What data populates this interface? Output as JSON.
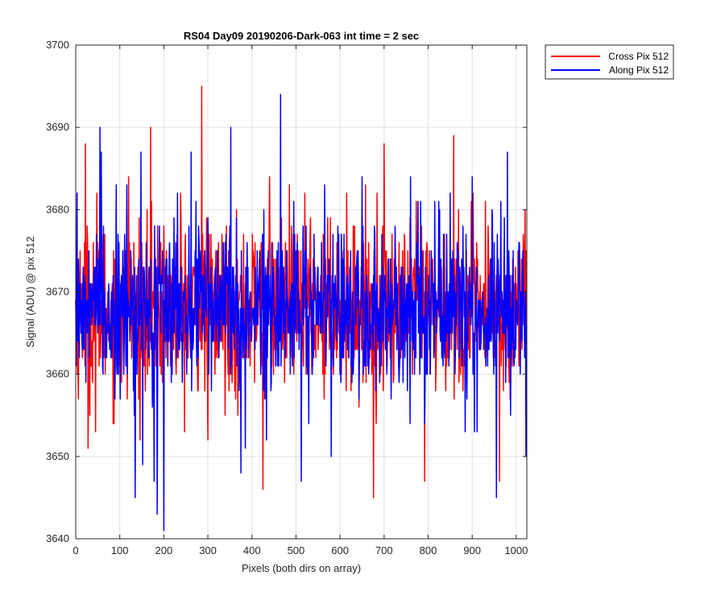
{
  "chart_data": {
    "type": "line",
    "title": "RS04 Day09 20190206-Dark-063 int time = 2 sec",
    "xlabel": "Pixels (both dirs on array)",
    "ylabel": "Signal (ADU) @ pix 512",
    "xlim": [
      0,
      1024
    ],
    "ylim": [
      3640,
      3700
    ],
    "xticks": [
      0,
      100,
      200,
      300,
      400,
      500,
      600,
      700,
      800,
      900,
      1000
    ],
    "yticks": [
      3640,
      3650,
      3660,
      3670,
      3680,
      3690,
      3700
    ],
    "grid": true,
    "legend_position": "outside-top-right",
    "x_step": 1,
    "series": [
      {
        "name": "Cross Pix 512",
        "color": "#ff0000",
        "mean": 3668,
        "noise_std": 5,
        "samples": 1024,
        "peaks": [
          {
            "x": 5,
            "y": 3662
          },
          {
            "x": 22,
            "y": 3688
          },
          {
            "x": 28,
            "y": 3651
          },
          {
            "x": 45,
            "y": 3653
          },
          {
            "x": 48,
            "y": 3682
          },
          {
            "x": 120,
            "y": 3684
          },
          {
            "x": 145,
            "y": 3660
          },
          {
            "x": 170,
            "y": 3690
          },
          {
            "x": 200,
            "y": 3678
          },
          {
            "x": 238,
            "y": 3682
          },
          {
            "x": 286,
            "y": 3695
          },
          {
            "x": 300,
            "y": 3652
          },
          {
            "x": 368,
            "y": 3655
          },
          {
            "x": 425,
            "y": 3646
          },
          {
            "x": 440,
            "y": 3684
          },
          {
            "x": 520,
            "y": 3682
          },
          {
            "x": 676,
            "y": 3645
          },
          {
            "x": 700,
            "y": 3688
          },
          {
            "x": 792,
            "y": 3647
          },
          {
            "x": 858,
            "y": 3689
          },
          {
            "x": 962,
            "y": 3647
          },
          {
            "x": 1020,
            "y": 3680
          }
        ]
      },
      {
        "name": "Along Pix 512",
        "color": "#0000ff",
        "mean": 3668,
        "noise_std": 5,
        "samples": 1024,
        "peaks": [
          {
            "x": 3,
            "y": 3682
          },
          {
            "x": 55,
            "y": 3690
          },
          {
            "x": 58,
            "y": 3687
          },
          {
            "x": 92,
            "y": 3683
          },
          {
            "x": 135,
            "y": 3645
          },
          {
            "x": 148,
            "y": 3687
          },
          {
            "x": 152,
            "y": 3649
          },
          {
            "x": 178,
            "y": 3647
          },
          {
            "x": 185,
            "y": 3643
          },
          {
            "x": 200,
            "y": 3641
          },
          {
            "x": 262,
            "y": 3687
          },
          {
            "x": 352,
            "y": 3690
          },
          {
            "x": 375,
            "y": 3648
          },
          {
            "x": 385,
            "y": 3651
          },
          {
            "x": 465,
            "y": 3694
          },
          {
            "x": 495,
            "y": 3681
          },
          {
            "x": 512,
            "y": 3647
          },
          {
            "x": 565,
            "y": 3683
          },
          {
            "x": 580,
            "y": 3650
          },
          {
            "x": 650,
            "y": 3684
          },
          {
            "x": 760,
            "y": 3684
          },
          {
            "x": 815,
            "y": 3681
          },
          {
            "x": 850,
            "y": 3682
          },
          {
            "x": 900,
            "y": 3684
          },
          {
            "x": 955,
            "y": 3645
          },
          {
            "x": 980,
            "y": 3687
          },
          {
            "x": 1022,
            "y": 3650
          }
        ]
      }
    ]
  }
}
